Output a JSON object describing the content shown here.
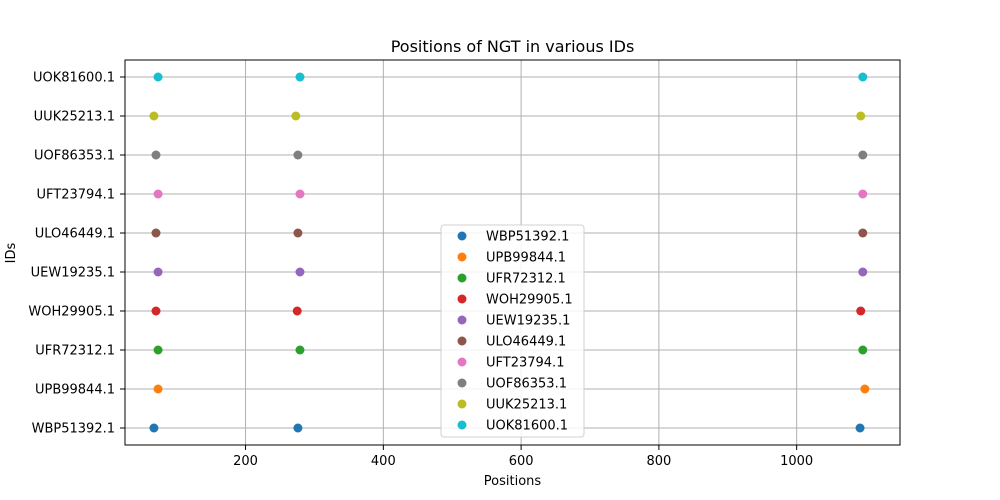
{
  "chart_data": {
    "type": "scatter",
    "title": "Positions of NGT in various IDs",
    "xlabel": "Positions",
    "ylabel": "IDs",
    "xlim": [
      25,
      1150
    ],
    "xticks": [
      200,
      400,
      600,
      800,
      1000
    ],
    "xtick_labels": [
      "200",
      "400",
      "600",
      "800",
      "1000"
    ],
    "grid": true,
    "legend_position": "lower center",
    "categories": [
      "WBP51392.1",
      "UPB99844.1",
      "UFR72312.1",
      "WOH29905.1",
      "UEW19235.1",
      "ULO46449.1",
      "UFT23794.1",
      "UOF86353.1",
      "UUK25213.1",
      "UOK81600.1"
    ],
    "series": [
      {
        "name": "WBP51392.1",
        "color": "#1f77b4",
        "x": [
          67,
          276,
          1092
        ]
      },
      {
        "name": "UPB99844.1",
        "color": "#ff7f0e",
        "x": [
          73,
          1099
        ]
      },
      {
        "name": "UFR72312.1",
        "color": "#2ca02c",
        "x": [
          73,
          279,
          1096
        ]
      },
      {
        "name": "WOH29905.1",
        "color": "#d62728",
        "x": [
          70,
          275,
          1093
        ]
      },
      {
        "name": "UEW19235.1",
        "color": "#9467bd",
        "x": [
          73,
          279,
          1096
        ]
      },
      {
        "name": "ULO46449.1",
        "color": "#8c564b",
        "x": [
          70,
          276,
          1096
        ]
      },
      {
        "name": "UFT23794.1",
        "color": "#e377c2",
        "x": [
          73,
          279,
          1096
        ]
      },
      {
        "name": "UOF86353.1",
        "color": "#7f7f7f",
        "x": [
          70,
          276,
          1096
        ]
      },
      {
        "name": "UUK25213.1",
        "color": "#bcbd22",
        "x": [
          67,
          273,
          1093
        ]
      },
      {
        "name": "UOK81600.1",
        "color": "#17becf",
        "x": [
          73,
          279,
          1096
        ]
      }
    ]
  }
}
